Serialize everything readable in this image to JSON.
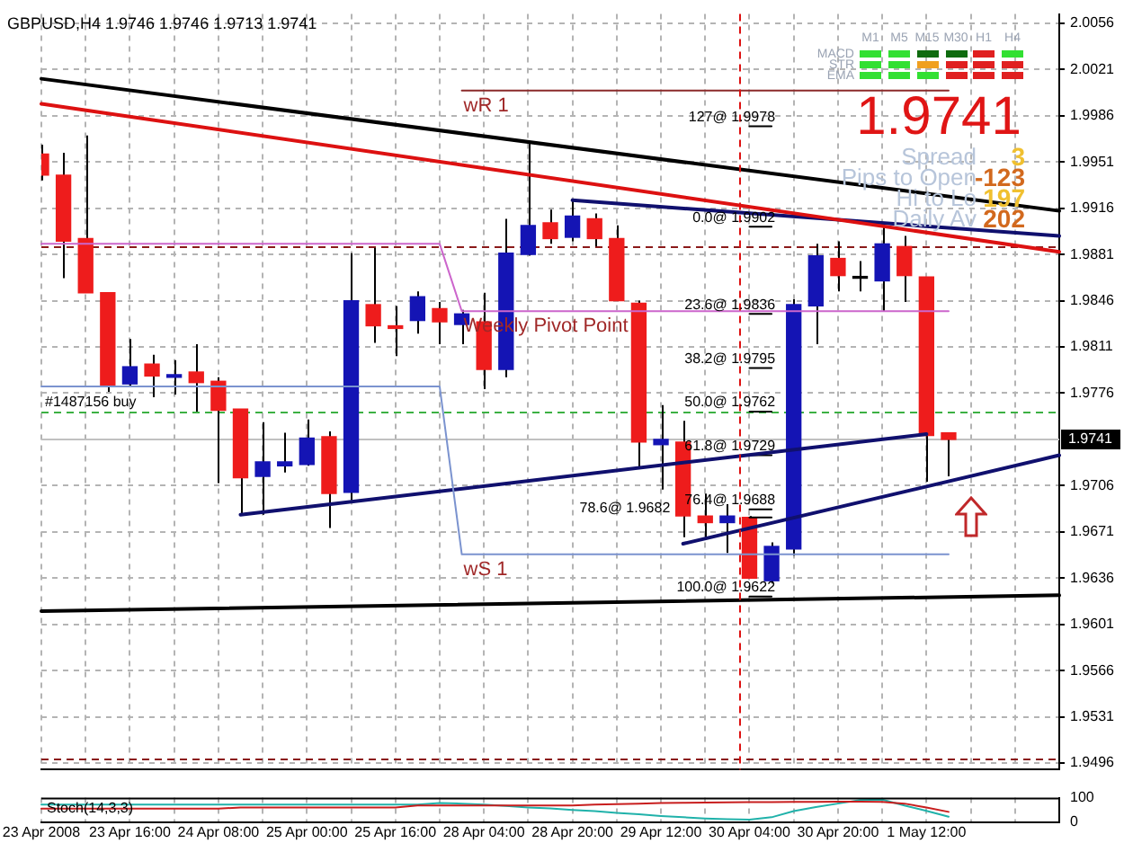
{
  "chart_data": [
    {
      "type": "candlestick",
      "title": "GBPUSD,H4 1.9746 1.9746 1.9713 1.9741",
      "categories": [
        "23 Apr 2008",
        null,
        null,
        null,
        "23 Apr 16:00",
        null,
        null,
        null,
        "24 Apr 08:00",
        null,
        null,
        null,
        "25 Apr 00:00",
        null,
        null,
        null,
        "25 Apr 16:00",
        null,
        null,
        null,
        "28 Apr 04:00",
        null,
        null,
        null,
        "28 Apr 20:00",
        null,
        null,
        null,
        "29 Apr 12:00",
        null,
        null,
        null,
        "30 Apr 04:00",
        null,
        null,
        null,
        "30 Apr 20:00",
        null,
        null,
        null,
        "1 May 12:00",
        null,
        null,
        null,
        null,
        null,
        null
      ],
      "ohlc": [
        [
          1.9957,
          1.9964,
          1.9937,
          1.9941
        ],
        [
          1.9941,
          1.9958,
          1.9863,
          1.9891
        ],
        [
          1.9893,
          1.9971,
          1.9852,
          1.9852
        ],
        [
          1.9852,
          1.9852,
          1.9777,
          1.9781
        ],
        [
          1.9783,
          1.9817,
          1.9781,
          1.9796
        ],
        [
          1.9798,
          1.9805,
          1.9773,
          1.9789
        ],
        [
          1.9788,
          1.9801,
          1.9775,
          1.979
        ],
        [
          1.9792,
          1.9813,
          1.9762,
          1.9784
        ],
        [
          1.9785,
          1.9788,
          1.9708,
          1.9763
        ],
        [
          1.9764,
          1.9764,
          1.9684,
          1.9712
        ],
        [
          1.9713,
          1.9754,
          1.9684,
          1.9724
        ],
        [
          1.9721,
          1.9746,
          1.9716,
          1.9724
        ],
        [
          1.9722,
          1.9756,
          1.9721,
          1.9742
        ],
        [
          1.9743,
          1.9747,
          1.9674,
          1.97
        ],
        [
          1.9701,
          1.9882,
          1.9695,
          1.9846
        ],
        [
          1.9843,
          1.9886,
          1.9814,
          1.9827
        ],
        [
          1.9827,
          1.9842,
          1.9804,
          1.9825
        ],
        [
          1.9831,
          1.9853,
          1.9821,
          1.9849
        ],
        [
          1.984,
          1.9845,
          1.9813,
          1.983
        ],
        [
          1.9828,
          1.9839,
          1.9813,
          1.9836
        ],
        [
          1.983,
          1.9852,
          1.9779,
          1.9794
        ],
        [
          1.9794,
          1.9908,
          1.9788,
          1.9882
        ],
        [
          1.9881,
          1.9966,
          1.988,
          1.9903
        ],
        [
          1.9905,
          1.9915,
          1.9889,
          1.9893
        ],
        [
          1.9894,
          1.9922,
          1.9891,
          1.991
        ],
        [
          1.9908,
          1.9912,
          1.9887,
          1.9893
        ],
        [
          1.9893,
          1.9903,
          1.9846,
          1.9846
        ],
        [
          1.9844,
          1.9846,
          1.972,
          1.9739
        ],
        [
          1.9737,
          1.9767,
          1.9703,
          1.9741
        ],
        [
          1.9739,
          1.9755,
          1.9667,
          1.9683
        ],
        [
          1.9683,
          1.97,
          1.9667,
          1.9678
        ],
        [
          1.9678,
          1.9692,
          1.9655,
          1.9683
        ],
        [
          1.9682,
          1.9683,
          1.9636,
          1.9636
        ],
        [
          1.9634,
          1.9663,
          1.9632,
          1.966
        ],
        [
          1.9658,
          1.9847,
          1.9653,
          1.9843
        ],
        [
          1.9842,
          1.9889,
          1.9813,
          1.988
        ],
        [
          1.9878,
          1.9891,
          1.9853,
          1.9865
        ],
        [
          1.9863,
          1.9876,
          1.9853,
          1.9863
        ],
        [
          1.9861,
          1.9903,
          1.9838,
          1.9889
        ],
        [
          1.9887,
          1.9895,
          1.9845,
          1.9865
        ],
        [
          1.9864,
          1.9864,
          1.9709,
          1.9744
        ],
        [
          1.9746,
          1.9746,
          1.9713,
          1.9741
        ],
        null,
        null,
        null,
        null,
        null
      ],
      "colors": [
        "#ee1c1c",
        "#ee1c1c",
        "#ee1c1c",
        "#ee1c1c",
        "#1414b4",
        "#ee1c1c",
        "#1414b4",
        "#ee1c1c",
        "#ee1c1c",
        "#ee1c1c",
        "#1414b4",
        "#1414b4",
        "#1414b4",
        "#ee1c1c",
        "#1414b4",
        "#ee1c1c",
        "#ee1c1c",
        "#1414b4",
        "#ee1c1c",
        "#1414b4",
        "#ee1c1c",
        "#1414b4",
        "#1414b4",
        "#ee1c1c",
        "#1414b4",
        "#ee1c1c",
        "#ee1c1c",
        "#ee1c1c",
        "#1414b4",
        "#ee1c1c",
        "#ee1c1c",
        "#1414b4",
        "#ee1c1c",
        "#1414b4",
        "#1414b4",
        "#1414b4",
        "#ee1c1c",
        "#000000",
        "#1414b4",
        "#ee1c1c",
        "#ee1c1c",
        "#ee1c1c",
        null,
        null,
        null,
        null,
        null
      ],
      "series": [
        {
          "name": "wR 1",
          "type": "line",
          "color": "#8b2a2a",
          "values": [
            null,
            null,
            null,
            null,
            null,
            null,
            null,
            null,
            null,
            null,
            null,
            null,
            null,
            null,
            null,
            null,
            null,
            null,
            null,
            2.0005,
            2.0005,
            2.0005,
            2.0005,
            2.0005,
            2.0005,
            2.0005,
            2.0005,
            2.0005,
            2.0005,
            2.0005,
            2.0005,
            2.0005,
            2.0005,
            2.0005,
            2.0005,
            2.0005,
            2.0005,
            2.0005,
            2.0005,
            2.0005,
            2.0005,
            2.0005,
            null,
            null,
            null,
            null,
            null
          ]
        },
        {
          "name": "Weekly Pivot Point",
          "type": "line",
          "color": "#cc66cc",
          "values": [
            1.9889,
            1.9889,
            1.9889,
            1.9889,
            1.9889,
            1.9889,
            1.9889,
            1.9889,
            1.9889,
            1.9889,
            1.9889,
            1.9889,
            1.9889,
            1.9889,
            1.9889,
            1.9889,
            1.9889,
            1.9889,
            1.9889,
            1.9838,
            1.9838,
            1.9838,
            1.9838,
            1.9838,
            1.9838,
            1.9838,
            1.9838,
            1.9838,
            1.9838,
            1.9838,
            1.9838,
            1.9838,
            1.9838,
            1.9838,
            1.9838,
            1.9838,
            1.9838,
            1.9838,
            1.9838,
            1.9838,
            1.9838,
            1.9838,
            null,
            null,
            null,
            null,
            null
          ]
        },
        {
          "name": "wS 1",
          "type": "line",
          "color": "#7b93cf",
          "values": [
            1.9781,
            1.9781,
            1.9781,
            1.9781,
            1.9781,
            1.9781,
            1.9781,
            1.9781,
            1.9781,
            1.9781,
            1.9781,
            1.9781,
            1.9781,
            1.9781,
            1.9781,
            1.9781,
            1.9781,
            1.9781,
            1.9781,
            1.9654,
            1.9654,
            1.9654,
            1.9654,
            1.9654,
            1.9654,
            1.9654,
            1.9654,
            1.9654,
            1.9654,
            1.9654,
            1.9654,
            1.9654,
            1.9654,
            1.9654,
            1.9654,
            1.9654,
            1.9654,
            1.9654,
            1.9654,
            1.9654,
            1.9654,
            1.9654,
            null,
            null,
            null,
            null,
            null
          ]
        },
        {
          "type": "line",
          "color": "#000000",
          "values": [
            2.0014,
            null,
            null,
            null,
            null,
            null,
            null,
            null,
            null,
            null,
            null,
            null,
            null,
            null,
            null,
            null,
            null,
            null,
            null,
            null,
            null,
            null,
            null,
            null,
            null,
            null,
            null,
            null,
            null,
            null,
            null,
            null,
            null,
            null,
            null,
            null,
            null,
            null,
            null,
            null,
            null,
            null,
            null,
            null,
            null,
            null,
            1.9914
          ]
        },
        {
          "type": "line",
          "color": "#dd1111",
          "values": [
            1.9995,
            null,
            null,
            null,
            null,
            null,
            null,
            null,
            null,
            null,
            null,
            null,
            null,
            null,
            null,
            null,
            null,
            null,
            null,
            null,
            null,
            null,
            null,
            null,
            null,
            null,
            null,
            null,
            null,
            null,
            null,
            null,
            null,
            null,
            null,
            null,
            null,
            null,
            null,
            null,
            null,
            null,
            null,
            null,
            null,
            null,
            1.9883
          ]
        },
        {
          "type": "line",
          "color": "#10106e",
          "values": [
            null,
            null,
            null,
            null,
            null,
            null,
            null,
            null,
            null,
            null,
            null,
            null,
            null,
            null,
            null,
            null,
            null,
            null,
            null,
            null,
            null,
            null,
            null,
            null,
            1.9922,
            null,
            null,
            null,
            null,
            null,
            null,
            null,
            null,
            null,
            null,
            null,
            null,
            null,
            null,
            null,
            null,
            null,
            null,
            null,
            null,
            null,
            1.9895
          ]
        },
        {
          "type": "line",
          "color": "#10106e",
          "values": [
            null,
            null,
            null,
            null,
            null,
            null,
            null,
            null,
            null,
            1.9684,
            null,
            null,
            null,
            null,
            null,
            null,
            null,
            null,
            null,
            null,
            null,
            null,
            null,
            null,
            null,
            null,
            null,
            null,
            null,
            null,
            null,
            null,
            null,
            null,
            null,
            null,
            null,
            null,
            null,
            null,
            1.9745,
            null,
            null,
            null,
            null,
            null,
            null
          ]
        },
        {
          "type": "line",
          "color": "#10106e",
          "values": [
            null,
            null,
            null,
            null,
            null,
            null,
            null,
            null,
            null,
            null,
            null,
            null,
            null,
            null,
            null,
            null,
            null,
            null,
            null,
            null,
            null,
            null,
            null,
            null,
            null,
            null,
            null,
            null,
            null,
            1.9662,
            null,
            null,
            null,
            null,
            null,
            null,
            null,
            null,
            null,
            null,
            null,
            null,
            null,
            null,
            null,
            null,
            1.9729
          ]
        },
        {
          "type": "line",
          "color": "#000000",
          "values": [
            1.9611,
            null,
            null,
            null,
            null,
            null,
            null,
            null,
            null,
            null,
            null,
            null,
            null,
            null,
            null,
            null,
            null,
            null,
            null,
            null,
            null,
            null,
            null,
            null,
            null,
            null,
            null,
            null,
            null,
            null,
            null,
            null,
            null,
            null,
            null,
            null,
            null,
            null,
            null,
            null,
            null,
            null,
            null,
            null,
            null,
            null,
            1.9623
          ]
        },
        {
          "type": "line",
          "color": "#000000",
          "values": [
            null,
            null,
            null,
            null,
            null,
            null,
            null,
            null,
            null,
            null,
            null,
            null,
            null,
            null,
            null,
            null,
            null,
            null,
            null,
            null,
            null,
            null,
            null,
            null,
            null,
            null,
            null,
            null,
            null,
            null,
            null,
            null,
            1.9978,
            1.9978,
            null,
            null,
            null,
            null,
            null,
            null,
            null,
            null,
            null,
            null,
            null,
            null,
            null
          ]
        },
        {
          "type": "line",
          "color": "#000000",
          "values": [
            null,
            null,
            null,
            null,
            null,
            null,
            null,
            null,
            null,
            null,
            null,
            null,
            null,
            null,
            null,
            null,
            null,
            null,
            null,
            null,
            null,
            null,
            null,
            null,
            null,
            null,
            null,
            null,
            null,
            null,
            null,
            null,
            1.9902,
            1.9902,
            null,
            null,
            null,
            null,
            null,
            null,
            null,
            null,
            null,
            null,
            null,
            null,
            null
          ]
        },
        {
          "type": "line",
          "color": "#000000",
          "values": [
            null,
            null,
            null,
            null,
            null,
            null,
            null,
            null,
            null,
            null,
            null,
            null,
            null,
            null,
            null,
            null,
            null,
            null,
            null,
            null,
            null,
            null,
            null,
            null,
            null,
            null,
            null,
            null,
            null,
            null,
            null,
            null,
            1.9836,
            1.9836,
            null,
            null,
            null,
            null,
            null,
            null,
            null,
            null,
            null,
            null,
            null,
            null,
            null
          ]
        },
        {
          "type": "line",
          "color": "#000000",
          "values": [
            null,
            null,
            null,
            null,
            null,
            null,
            null,
            null,
            null,
            null,
            null,
            null,
            null,
            null,
            null,
            null,
            null,
            null,
            null,
            null,
            null,
            null,
            null,
            null,
            null,
            null,
            null,
            null,
            null,
            null,
            null,
            null,
            1.9795,
            1.9795,
            null,
            null,
            null,
            null,
            null,
            null,
            null,
            null,
            null,
            null,
            null,
            null,
            null
          ]
        },
        {
          "type": "line",
          "color": "#000000",
          "values": [
            null,
            null,
            null,
            null,
            null,
            null,
            null,
            null,
            null,
            null,
            null,
            null,
            null,
            null,
            null,
            null,
            null,
            null,
            null,
            null,
            null,
            null,
            null,
            null,
            null,
            null,
            null,
            null,
            null,
            null,
            null,
            null,
            1.9762,
            1.9762,
            null,
            null,
            null,
            null,
            null,
            null,
            null,
            null,
            null,
            null,
            null,
            null,
            null
          ]
        },
        {
          "type": "line",
          "color": "#000000",
          "values": [
            null,
            null,
            null,
            null,
            null,
            null,
            null,
            null,
            null,
            null,
            null,
            null,
            null,
            null,
            null,
            null,
            null,
            null,
            null,
            null,
            null,
            null,
            null,
            null,
            null,
            null,
            null,
            null,
            null,
            null,
            null,
            null,
            1.9729,
            1.9729,
            null,
            null,
            null,
            null,
            null,
            null,
            null,
            null,
            null,
            null,
            null,
            null,
            null
          ]
        },
        {
          "type": "line",
          "color": "#000000",
          "values": [
            null,
            null,
            null,
            null,
            null,
            null,
            null,
            null,
            null,
            null,
            null,
            null,
            null,
            null,
            null,
            null,
            null,
            null,
            null,
            null,
            null,
            null,
            null,
            null,
            null,
            null,
            null,
            null,
            null,
            null,
            null,
            null,
            1.9688,
            1.9688,
            null,
            null,
            null,
            null,
            null,
            null,
            null,
            null,
            null,
            null,
            null,
            null,
            null
          ]
        },
        {
          "type": "line",
          "color": "#000000",
          "values": [
            null,
            null,
            null,
            null,
            null,
            null,
            null,
            null,
            null,
            null,
            null,
            null,
            null,
            null,
            null,
            null,
            null,
            null,
            null,
            null,
            null,
            null,
            null,
            null,
            null,
            null,
            null,
            null,
            null,
            null,
            null,
            null,
            1.9682,
            1.9682,
            null,
            null,
            null,
            null,
            null,
            null,
            null,
            null,
            null,
            null,
            null,
            null,
            null
          ]
        },
        {
          "type": "line",
          "color": "#000000",
          "values": [
            null,
            null,
            null,
            null,
            null,
            null,
            null,
            null,
            null,
            null,
            null,
            null,
            null,
            null,
            null,
            null,
            null,
            null,
            null,
            null,
            null,
            null,
            null,
            null,
            null,
            null,
            null,
            null,
            null,
            null,
            null,
            null,
            1.9622,
            1.9622,
            null,
            null,
            null,
            null,
            null,
            null,
            null,
            null,
            null,
            null,
            null,
            null,
            null
          ]
        }
      ],
      "ylim": [
        1.9491,
        2.0063
      ],
      "yticks": [
        2.0056,
        2.0021,
        1.9986,
        1.9951,
        1.9916,
        1.9881,
        1.9846,
        1.9811,
        1.9776,
        1.9706,
        1.9671,
        1.9636,
        1.9601,
        1.9566,
        1.9531,
        1.9496
      ],
      "grid": true,
      "tick_labels": "y",
      "marker": "none",
      "ref_lines": [
        {
          "axis": "y",
          "value": 1.9887,
          "color": "#8b1a1a",
          "line_style": "dashed"
        },
        {
          "axis": "y",
          "value": 1.9499,
          "color": "#8b1a1a",
          "line_style": "dashed"
        },
        {
          "axis": "y",
          "value": 1.9762,
          "label": "#1487156 buy",
          "color": "#3cb043",
          "line_style": "dashed"
        },
        {
          "axis": "y",
          "value": 1.9741,
          "label": "1.9741",
          "color": "#c0c0c0",
          "line_style": "solid"
        },
        {
          "axis": "x",
          "value": "30 Apr 04:00",
          "color": "#dd1111",
          "line_style": "dashed"
        }
      ],
      "annotations": [
        "127@ 1.9978",
        "0.0@ 1.9902",
        "23.6@ 1.9836",
        "38.2@ 1.9795",
        "50.0@ 1.9762",
        "61.8@ 1.9729",
        "76.4@ 1.9688",
        "78.6@ 1.9682",
        "100.0@ 1.9622",
        "M1",
        "M5",
        "M15",
        "M30",
        "H1",
        "H4",
        "MACD",
        "STR",
        "EMA",
        "1.9741",
        "Spread",
        "3",
        "Pips to Open",
        "-123",
        "Hi to Lo",
        "197",
        "Daily Av",
        "202"
      ]
    },
    {
      "type": "line",
      "categories": [
        "23 Apr 2008",
        null,
        null,
        null,
        "23 Apr 16:00",
        null,
        null,
        null,
        "24 Apr 08:00",
        null,
        null,
        null,
        "25 Apr 00:00",
        null,
        null,
        null,
        "25 Apr 16:00",
        null,
        null,
        null,
        "28 Apr 04:00",
        null,
        null,
        null,
        "28 Apr 20:00",
        null,
        null,
        null,
        "29 Apr 12:00",
        null,
        null,
        null,
        "30 Apr 04:00",
        null,
        null,
        null,
        "30 Apr 20:00",
        null,
        null,
        null,
        "1 May 12:00",
        null,
        null,
        null,
        null,
        null,
        null
      ],
      "series": [
        {
          "color": "#c81e1e",
          "values": [
            55,
            55,
            55,
            55,
            55,
            55,
            55,
            55,
            55,
            60,
            60,
            60,
            60,
            60,
            60,
            60,
            60,
            68,
            68,
            68,
            68,
            68,
            68,
            68,
            68,
            72,
            74,
            76,
            78,
            79,
            80,
            81,
            82,
            82,
            83,
            83,
            84,
            84,
            83,
            76,
            60,
            42,
            null,
            null,
            null,
            null,
            null
          ]
        },
        {
          "color": "#20b2aa",
          "values": [
            72,
            72,
            72,
            72,
            72,
            72,
            72,
            72,
            72,
            72,
            72,
            72,
            72,
            72,
            72,
            72,
            72,
            72,
            78,
            76,
            72,
            66,
            60,
            56,
            50,
            45,
            38,
            32,
            25,
            20,
            15,
            12,
            10,
            20,
            45,
            62,
            76,
            90,
            92,
            68,
            46,
            22,
            null,
            null,
            null,
            null,
            null
          ]
        }
      ],
      "ylim": [
        0,
        100
      ],
      "yticks": [
        0,
        100
      ],
      "grid": "x",
      "marker": "none",
      "annotations": [
        "Stoch(14,3,3)"
      ]
    }
  ]
}
